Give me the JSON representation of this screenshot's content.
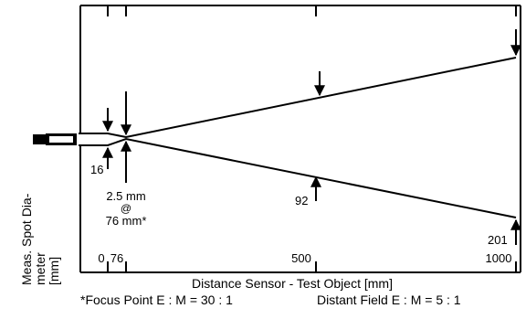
{
  "y_axis_title_line1": "Meas. Spot Dia-",
  "y_axis_title_line2": "meter",
  "y_axis_unit": "[mm]",
  "x_axis_title": "Distance Sensor - Test Object [mm]",
  "footer": {
    "focus_ratio": "*Focus Point E : M = 30 : 1",
    "distant_ratio": "Distant Field E : M = 5 : 1"
  },
  "x_ticks": [
    "0",
    "76",
    "500",
    "1000"
  ],
  "spot_labels": {
    "at_0": "16",
    "at_500": "92",
    "at_1000": "201"
  },
  "focus_note": {
    "line1": "2.5 mm",
    "line2": "@",
    "line3": "76 mm*"
  }
}
